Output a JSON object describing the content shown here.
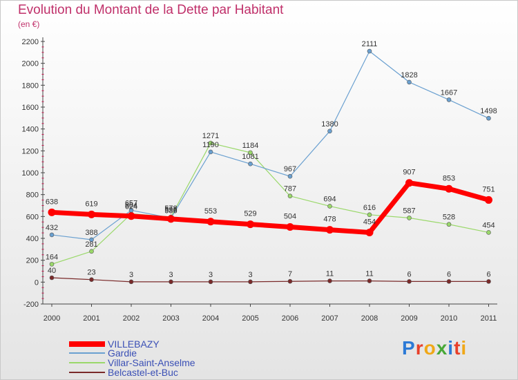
{
  "title": "Evolution du Montant de la Dette par Habitant",
  "unit": "(en €)",
  "logo": {
    "text": "Proxiti",
    "letter_colors": [
      "#2c7ad6",
      "#e8402a",
      "#f0a818",
      "#48a838",
      "#2c7ad6",
      "#e8402a",
      "#f0a818"
    ]
  },
  "chart_data": {
    "type": "line",
    "x": [
      "2000",
      "2001",
      "2002",
      "2003",
      "2004",
      "2005",
      "2006",
      "2007",
      "2008",
      "2009",
      "2010",
      "2011"
    ],
    "ylim": [
      -200,
      2200
    ],
    "yticks": [
      "-200",
      "0",
      "200",
      "400",
      "600",
      "800",
      "1000",
      "1200",
      "1400",
      "1600",
      "1800",
      "2000",
      "2200"
    ],
    "grid": false,
    "legend": "bottom-left",
    "series": [
      {
        "name": "VILLEBAZY",
        "color": "#ff0000",
        "width": 7,
        "values": [
          638,
          619,
          604,
          578,
          553,
          529,
          504,
          478,
          454,
          907,
          853,
          751
        ],
        "labels": [
          "638",
          "619",
          "604",
          "578",
          "553",
          "529",
          "504",
          "478",
          "454",
          "907",
          "853",
          "751"
        ]
      },
      {
        "name": "Gardie",
        "color": "#6aa0d0",
        "width": 1.2,
        "values": [
          432,
          388,
          657,
          586,
          1190,
          1081,
          967,
          1380,
          2111,
          1828,
          1667,
          1498
        ],
        "labels": [
          "432",
          "388",
          "657",
          "586",
          "1190",
          "1081",
          "967",
          "1380",
          "2111",
          "1828",
          "1667",
          "1498"
        ]
      },
      {
        "name": "Villar-Saint-Anselme",
        "color": "#9ad86a",
        "width": 1.2,
        "values": [
          164,
          281,
          624,
          596,
          1271,
          1184,
          787,
          694,
          616,
          587,
          528,
          454
        ],
        "labels": [
          "164",
          "281",
          "624",
          "596",
          "1271",
          "1184",
          "787",
          "694",
          "616",
          "587",
          "528",
          "454"
        ]
      },
      {
        "name": "Belcastel-et-Buc",
        "color": "#7a2a2a",
        "width": 1.2,
        "values": [
          40,
          23,
          3,
          3,
          3,
          3,
          7,
          11,
          11,
          6,
          6,
          6
        ],
        "labels": [
          "40",
          "23",
          "3",
          "3",
          "3",
          "3",
          "7",
          "11",
          "11",
          "6",
          "6",
          "6"
        ]
      }
    ]
  }
}
